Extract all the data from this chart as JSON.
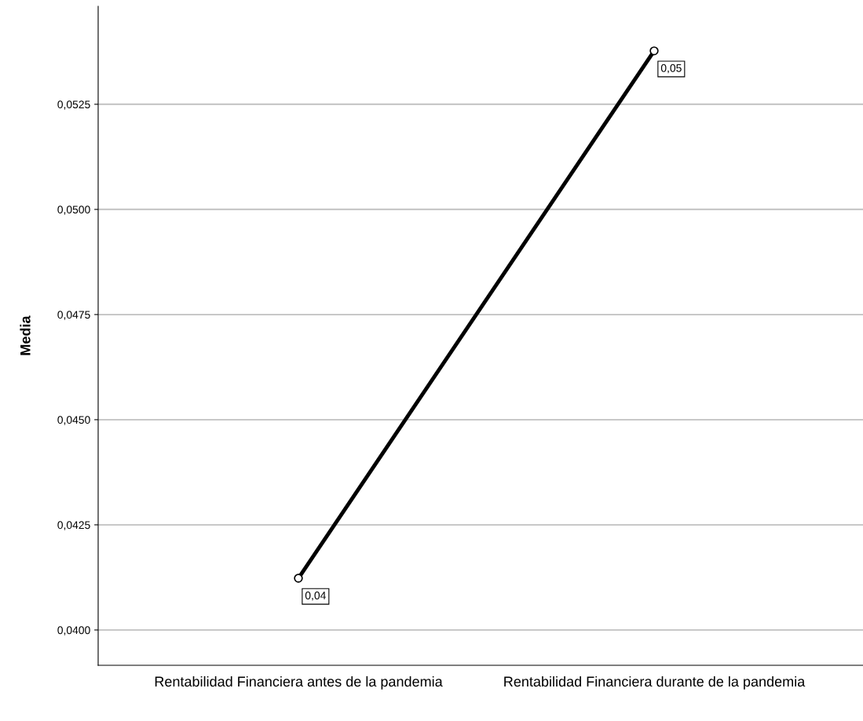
{
  "chart_data": {
    "type": "line",
    "ylabel": "Media",
    "categories": [
      "Rentabilidad Financiera antes de la pandemia",
      "Rentabilidad Financiera durante de la pandemia"
    ],
    "series": [
      {
        "color": "#000000",
        "values": [
          0.04123,
          0.05377
        ],
        "value_labels": [
          "0,04",
          "0,05"
        ]
      }
    ],
    "ylim": [
      0.03916,
      0.05483
    ],
    "yticks": [
      {
        "value": 0.04,
        "label": "0,0400"
      },
      {
        "value": 0.0425,
        "label": "0,0425"
      },
      {
        "value": 0.045,
        "label": "0,0450"
      },
      {
        "value": 0.0475,
        "label": "0,0475"
      },
      {
        "value": 0.05,
        "label": "0,0500"
      },
      {
        "value": 0.0525,
        "label": "0,0525"
      }
    ],
    "grid": "y",
    "marker": "circle",
    "line_style": "solid"
  }
}
